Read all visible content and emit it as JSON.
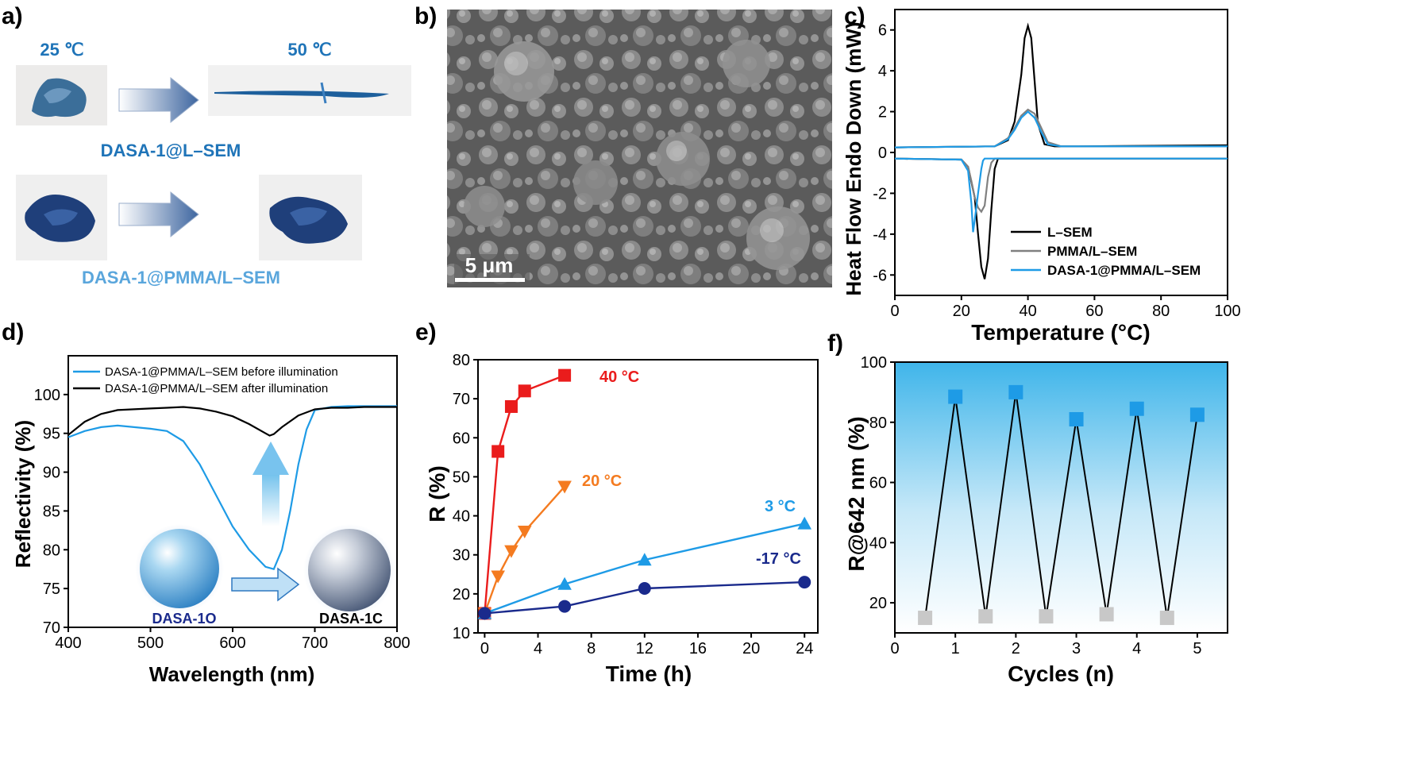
{
  "panel_a": {
    "label": "a)",
    "temp_before": "25 ℃",
    "temp_after": "50 ℃",
    "sample1": "DASA-1@L–SEM",
    "sample2": "DASA-1@PMMA/L–SEM",
    "colors": {
      "caption1": "#1f74b8",
      "caption2": "#5aa6dc",
      "powder": "#2d5a8e",
      "arrow": "#4a6fa5"
    }
  },
  "panel_b": {
    "label": "b)",
    "scale_bar": "5 μm"
  },
  "panel_e_labels": {
    "label": "e)"
  },
  "panel_f_labels": {
    "label": "f)"
  },
  "panel_d_labels": {
    "label": "d)",
    "sphere_open": "DASA-1O",
    "sphere_closed": "DASA-1C"
  },
  "chart_data": [
    {
      "panel": "c)",
      "type": "line",
      "xlabel": "Temperature (°C)",
      "ylabel": "Heat Flow Endo Down (mW)",
      "xlim": [
        0,
        100
      ],
      "ylim": [
        -7,
        7
      ],
      "xticks": [
        0,
        20,
        40,
        60,
        80,
        100
      ],
      "yticks": [
        -6,
        -4,
        -2,
        0,
        2,
        4,
        6
      ],
      "legend_position": "bottom-right",
      "series": [
        {
          "name": "L–SEM",
          "color": "#000000",
          "heating": {
            "x": [
              0,
              30,
              34,
              36,
              38,
              39,
              40,
              41,
              42,
              43,
              45,
              48,
              55,
              100
            ],
            "y": [
              0.25,
              0.3,
              0.6,
              1.5,
              3.8,
              5.6,
              6.2,
              5.6,
              3.5,
              1.4,
              0.4,
              0.3,
              0.3,
              0.35
            ]
          },
          "cooling": {
            "x": [
              0,
              20,
              22,
              24,
              25,
              26,
              27,
              28,
              29,
              30,
              31,
              100
            ],
            "y": [
              -0.3,
              -0.35,
              -0.7,
              -2.2,
              -4,
              -5.6,
              -6.2,
              -5.2,
              -2.8,
              -0.8,
              -0.3,
              -0.3
            ]
          }
        },
        {
          "name": "PMMA/L–SEM",
          "color": "#808080",
          "heating": {
            "x": [
              0,
              30,
              34,
              36,
              38,
              40,
              42,
              44,
              46,
              50,
              100
            ],
            "y": [
              0.25,
              0.3,
              0.7,
              1.2,
              1.8,
              2.1,
              1.9,
              1.2,
              0.5,
              0.3,
              0.3
            ]
          },
          "cooling": {
            "x": [
              0,
              20,
              22,
              23,
              24,
              25,
              26,
              27,
              28,
              29,
              30,
              100
            ],
            "y": [
              -0.3,
              -0.35,
              -0.7,
              -1.4,
              -2.2,
              -2.7,
              -2.9,
              -2.6,
              -1.2,
              -0.5,
              -0.3,
              -0.3
            ]
          }
        },
        {
          "name": "DASA-1@PMMA/L–SEM",
          "color": "#1e9be6",
          "heating": {
            "x": [
              0,
              30,
              34,
              36,
              38,
              40,
              42,
              44,
              46,
              50,
              100
            ],
            "y": [
              0.25,
              0.3,
              0.65,
              1.1,
              1.7,
              2.0,
              1.7,
              1.0,
              0.4,
              0.3,
              0.3
            ]
          },
          "cooling": {
            "x": [
              0,
              20,
              22,
              23,
              23.5,
              24,
              25,
              26,
              26.5,
              27,
              100
            ],
            "y": [
              -0.3,
              -0.35,
              -0.9,
              -2.5,
              -3.9,
              -3.3,
              -2.0,
              -0.8,
              -0.4,
              -0.3,
              -0.3
            ]
          }
        }
      ]
    },
    {
      "panel": "d)",
      "type": "line",
      "xlabel": "Wavelength (nm)",
      "ylabel": "Reflectivity (%)",
      "xlim": [
        400,
        800
      ],
      "ylim": [
        70,
        105
      ],
      "xticks": [
        400,
        500,
        600,
        700,
        800
      ],
      "yticks": [
        70,
        75,
        80,
        85,
        90,
        95,
        100
      ],
      "legend_position": "top-left",
      "series": [
        {
          "name": "DASA-1@PMMA/L–SEM before illumination",
          "color": "#1e9be6",
          "x": [
            400,
            420,
            440,
            460,
            480,
            500,
            520,
            540,
            560,
            580,
            600,
            620,
            640,
            650,
            660,
            670,
            680,
            690,
            700,
            720,
            740,
            760,
            780,
            800
          ],
          "y": [
            94.5,
            95.3,
            95.8,
            96,
            95.8,
            95.6,
            95.3,
            94,
            91,
            87,
            83,
            80,
            77.8,
            77.5,
            80,
            85,
            91,
            95.5,
            98,
            98.4,
            98.5,
            98.5,
            98.5,
            98.5
          ]
        },
        {
          "name": "DASA-1@PMMA/L–SEM after illumination",
          "color": "#000000",
          "x": [
            400,
            420,
            440,
            460,
            480,
            500,
            520,
            540,
            560,
            580,
            600,
            620,
            640,
            645,
            650,
            660,
            680,
            700,
            720,
            740,
            760,
            780,
            800
          ],
          "y": [
            94.8,
            96.5,
            97.5,
            98,
            98.1,
            98.2,
            98.3,
            98.4,
            98.2,
            97.8,
            97.2,
            96.2,
            95,
            94.7,
            94.9,
            95.8,
            97.3,
            98.1,
            98.3,
            98.3,
            98.4,
            98.4,
            98.4
          ]
        }
      ]
    },
    {
      "panel": "e)",
      "type": "line",
      "xlabel": "Time (h)",
      "ylabel": "R (%)",
      "xlim": [
        -0.5,
        25
      ],
      "ylim": [
        10,
        80
      ],
      "xticks": [
        0,
        4,
        8,
        12,
        16,
        20,
        24
      ],
      "yticks": [
        10,
        20,
        30,
        40,
        50,
        60,
        70,
        80
      ],
      "series": [
        {
          "name": "40 °C",
          "color": "#ea1c1c",
          "marker": "square",
          "x": [
            0,
            1,
            2,
            3,
            6
          ],
          "y": [
            15,
            56.5,
            68,
            72,
            76
          ]
        },
        {
          "name": "20 °C",
          "color": "#f47b20",
          "marker": "triangle-down",
          "x": [
            0,
            1,
            2,
            3,
            6
          ],
          "y": [
            15,
            24.5,
            31,
            36,
            47.5
          ]
        },
        {
          "name": "3 °C",
          "color": "#1e9be6",
          "marker": "triangle-up",
          "x": [
            0,
            6,
            12,
            24
          ],
          "y": [
            15,
            22.5,
            28.7,
            38
          ]
        },
        {
          "name": "-17 °C",
          "color": "#1a2a8c",
          "marker": "circle",
          "x": [
            0,
            6,
            12,
            24
          ],
          "y": [
            15,
            16.8,
            21.4,
            23
          ]
        }
      ]
    },
    {
      "panel": "f)",
      "type": "line",
      "xlabel": "Cycles (n)",
      "ylabel": "R@642 nm (%)",
      "xlim": [
        0,
        5.5
      ],
      "ylim": [
        10,
        100
      ],
      "xticks": [
        0,
        1,
        2,
        3,
        4,
        5
      ],
      "yticks": [
        20,
        40,
        60,
        80,
        100
      ],
      "x": [
        0.5,
        1,
        1.5,
        2,
        2.5,
        3,
        3.5,
        4,
        4.5,
        5
      ],
      "y": [
        15,
        88.5,
        15.5,
        90,
        15.5,
        81,
        16.2,
        84.5,
        15,
        82.5
      ],
      "colors": {
        "line": "#000000",
        "high": "#1e9be6",
        "low": "#c8c8c8",
        "bg_top": "#3fb5ea",
        "bg_bottom": "#ffffff"
      }
    }
  ]
}
